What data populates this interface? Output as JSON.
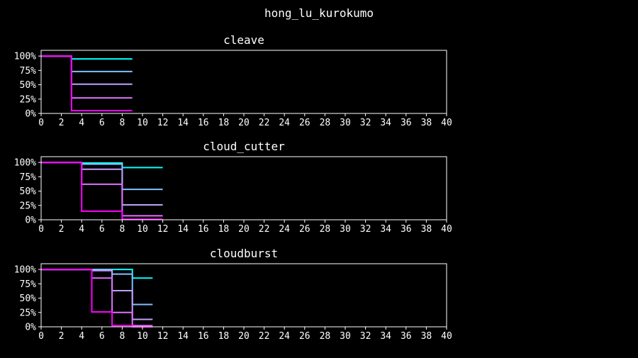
{
  "figure_title": "hong_lu_kurokumo",
  "colors": {
    "background": "#000000",
    "foreground": "#ffffff",
    "palette": [
      "#00ffff",
      "#80c0ff",
      "#c0a0ff",
      "#e070ff",
      "#ff00ff"
    ]
  },
  "chart_data": [
    {
      "type": "line",
      "step": "post",
      "title": "cleave",
      "xlabel": "",
      "ylabel": "",
      "xlim": [
        0,
        40
      ],
      "ylim": [
        0,
        1.1
      ],
      "xticks": [
        0,
        2,
        4,
        6,
        8,
        10,
        12,
        14,
        16,
        18,
        20,
        22,
        24,
        26,
        28,
        30,
        32,
        34,
        36,
        38,
        40
      ],
      "yticks": [
        0,
        0.25,
        0.5,
        0.75,
        1.0
      ],
      "ytick_labels": [
        "0%",
        "25%",
        "50%",
        "75%",
        "100%"
      ],
      "grid": false,
      "series": [
        {
          "x": [
            0,
            3,
            9
          ],
          "y": [
            1.0,
            0.95,
            0.95
          ]
        },
        {
          "x": [
            0,
            3,
            9
          ],
          "y": [
            1.0,
            0.73,
            0.73
          ]
        },
        {
          "x": [
            0,
            3,
            9
          ],
          "y": [
            1.0,
            0.51,
            0.51
          ]
        },
        {
          "x": [
            0,
            3,
            9
          ],
          "y": [
            1.0,
            0.27,
            0.27
          ]
        },
        {
          "x": [
            0,
            3,
            9
          ],
          "y": [
            1.0,
            0.05,
            0.05
          ]
        }
      ]
    },
    {
      "type": "line",
      "step": "post",
      "title": "cloud_cutter",
      "xlabel": "",
      "ylabel": "",
      "xlim": [
        0,
        40
      ],
      "ylim": [
        0,
        1.1
      ],
      "xticks": [
        0,
        2,
        4,
        6,
        8,
        10,
        12,
        14,
        16,
        18,
        20,
        22,
        24,
        26,
        28,
        30,
        32,
        34,
        36,
        38,
        40
      ],
      "yticks": [
        0,
        0.25,
        0.5,
        0.75,
        1.0
      ],
      "ytick_labels": [
        "0%",
        "25%",
        "50%",
        "75%",
        "100%"
      ],
      "grid": false,
      "series": [
        {
          "x": [
            0,
            4,
            8,
            12
          ],
          "y": [
            1.0,
            0.99,
            0.91,
            0.91
          ]
        },
        {
          "x": [
            0,
            4,
            8,
            12
          ],
          "y": [
            1.0,
            0.97,
            0.53,
            0.53
          ]
        },
        {
          "x": [
            0,
            4,
            8,
            12
          ],
          "y": [
            1.0,
            0.88,
            0.26,
            0.26
          ]
        },
        {
          "x": [
            0,
            4,
            8,
            12
          ],
          "y": [
            1.0,
            0.62,
            0.07,
            0.07
          ]
        },
        {
          "x": [
            0,
            4,
            8,
            12
          ],
          "y": [
            1.0,
            0.15,
            0.01,
            0.01
          ]
        }
      ]
    },
    {
      "type": "line",
      "step": "post",
      "title": "cloudburst",
      "xlabel": "",
      "ylabel": "",
      "xlim": [
        0,
        40
      ],
      "ylim": [
        0,
        1.1
      ],
      "xticks": [
        0,
        2,
        4,
        6,
        8,
        10,
        12,
        14,
        16,
        18,
        20,
        22,
        24,
        26,
        28,
        30,
        32,
        34,
        36,
        38,
        40
      ],
      "yticks": [
        0,
        0.25,
        0.5,
        0.75,
        1.0
      ],
      "ytick_labels": [
        "0%",
        "25%",
        "50%",
        "75%",
        "100%"
      ],
      "grid": false,
      "series": [
        {
          "x": [
            0,
            5,
            7,
            9,
            11
          ],
          "y": [
            1.0,
            1.0,
            1.0,
            0.85,
            0.85
          ]
        },
        {
          "x": [
            0,
            5,
            7,
            9,
            11
          ],
          "y": [
            1.0,
            1.0,
            0.92,
            0.39,
            0.39
          ]
        },
        {
          "x": [
            0,
            5,
            7,
            9,
            11
          ],
          "y": [
            1.0,
            0.98,
            0.63,
            0.13,
            0.13
          ]
        },
        {
          "x": [
            0,
            5,
            7,
            9,
            11
          ],
          "y": [
            1.0,
            0.85,
            0.25,
            0.02,
            0.02
          ]
        },
        {
          "x": [
            0,
            5,
            7,
            9,
            11
          ],
          "y": [
            1.0,
            0.26,
            0.02,
            0.0,
            0.0
          ]
        }
      ]
    }
  ]
}
